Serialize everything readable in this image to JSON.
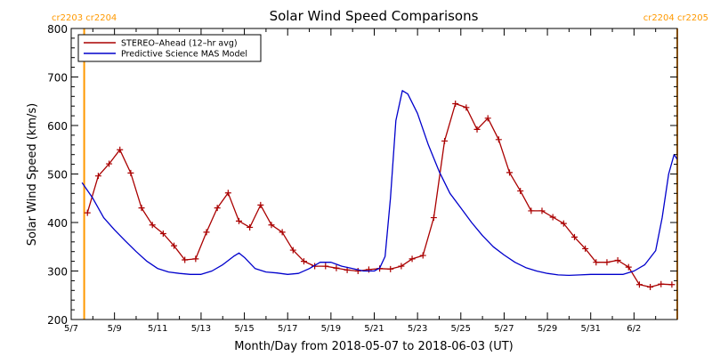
{
  "chart_data": {
    "type": "line",
    "title": "Solar Wind Speed Comparisons",
    "xlabel": "Month/Day from 2018-05-07 to 2018-06-03 (UT)",
    "ylabel": "Solar Wind Speed (km/s)",
    "xlim": [
      0,
      28
    ],
    "ylim": [
      200,
      800
    ],
    "x_ticks": [
      {
        "x": 0,
        "label": "5/7"
      },
      {
        "x": 2,
        "label": "5/9"
      },
      {
        "x": 4,
        "label": "5/11"
      },
      {
        "x": 6,
        "label": "5/13"
      },
      {
        "x": 8,
        "label": "5/15"
      },
      {
        "x": 10,
        "label": "5/17"
      },
      {
        "x": 12,
        "label": "5/19"
      },
      {
        "x": 14,
        "label": "5/21"
      },
      {
        "x": 16,
        "label": "5/23"
      },
      {
        "x": 18,
        "label": "5/25"
      },
      {
        "x": 20,
        "label": "5/27"
      },
      {
        "x": 22,
        "label": "5/29"
      },
      {
        "x": 24,
        "label": "5/31"
      },
      {
        "x": 26,
        "label": "6/2"
      }
    ],
    "y_ticks": [
      200,
      300,
      400,
      500,
      600,
      700,
      800
    ],
    "carrington": {
      "left_label": "cr2203 cr2204",
      "right_label": "cr2204 cr2205",
      "boundary_x": [
        0.6,
        28
      ],
      "color": "#ff9900"
    },
    "legend": {
      "position": "top-left"
    },
    "series": [
      {
        "name": "STEREO–Ahead (12–hr avg)",
        "color": "#aa0000",
        "marker": "plus",
        "points": [
          [
            0.75,
            420
          ],
          [
            1.25,
            496
          ],
          [
            1.75,
            521
          ],
          [
            2.25,
            550
          ],
          [
            2.75,
            502
          ],
          [
            3.25,
            430
          ],
          [
            3.75,
            395
          ],
          [
            4.25,
            377
          ],
          [
            4.75,
            352
          ],
          [
            5.25,
            323
          ],
          [
            5.75,
            325
          ],
          [
            6.25,
            380
          ],
          [
            6.75,
            430
          ],
          [
            7.25,
            461
          ],
          [
            7.75,
            403
          ],
          [
            8.25,
            390
          ],
          [
            8.75,
            436
          ],
          [
            9.25,
            395
          ],
          [
            9.75,
            380
          ],
          [
            10.25,
            343
          ],
          [
            10.75,
            320
          ],
          [
            11.25,
            310
          ],
          [
            11.75,
            310
          ],
          [
            12.25,
            306
          ],
          [
            12.75,
            302
          ],
          [
            13.25,
            300
          ],
          [
            13.75,
            303
          ],
          [
            14.25,
            305
          ],
          [
            14.75,
            304
          ],
          [
            15.25,
            310
          ],
          [
            15.75,
            325
          ],
          [
            16.25,
            332
          ],
          [
            16.75,
            410
          ],
          [
            17.25,
            568
          ],
          [
            17.75,
            645
          ],
          [
            18.25,
            637
          ],
          [
            18.75,
            592
          ],
          [
            19.25,
            615
          ],
          [
            19.75,
            571
          ],
          [
            20.25,
            503
          ],
          [
            20.75,
            465
          ],
          [
            21.25,
            424
          ],
          [
            21.75,
            424
          ],
          [
            22.25,
            411
          ],
          [
            22.75,
            398
          ],
          [
            23.25,
            370
          ],
          [
            23.75,
            346
          ],
          [
            24.25,
            318
          ],
          [
            24.75,
            318
          ],
          [
            25.25,
            322
          ],
          [
            25.75,
            308
          ],
          [
            26.25,
            272
          ],
          [
            26.75,
            267
          ],
          [
            27.25,
            273
          ],
          [
            27.75,
            272
          ]
        ]
      },
      {
        "name": "Predictive Science MAS Model",
        "color": "#0000cc",
        "marker": "none",
        "points": [
          [
            0.5,
            482
          ],
          [
            1,
            450
          ],
          [
            1.5,
            410
          ],
          [
            2,
            385
          ],
          [
            2.5,
            362
          ],
          [
            3,
            340
          ],
          [
            3.5,
            320
          ],
          [
            4,
            305
          ],
          [
            4.5,
            298
          ],
          [
            5,
            295
          ],
          [
            5.5,
            293
          ],
          [
            6,
            293
          ],
          [
            6.5,
            300
          ],
          [
            7,
            313
          ],
          [
            7.5,
            330
          ],
          [
            7.75,
            337
          ],
          [
            8,
            328
          ],
          [
            8.5,
            305
          ],
          [
            9,
            298
          ],
          [
            9.5,
            296
          ],
          [
            10,
            293
          ],
          [
            10.5,
            295
          ],
          [
            11,
            305
          ],
          [
            11.5,
            318
          ],
          [
            12,
            318
          ],
          [
            12.5,
            310
          ],
          [
            13,
            305
          ],
          [
            13.5,
            300
          ],
          [
            14,
            300
          ],
          [
            14.25,
            306
          ],
          [
            14.5,
            330
          ],
          [
            14.75,
            450
          ],
          [
            15,
            610
          ],
          [
            15.3,
            672
          ],
          [
            15.55,
            665
          ],
          [
            16,
            625
          ],
          [
            16.5,
            560
          ],
          [
            17,
            505
          ],
          [
            17.5,
            460
          ],
          [
            18,
            430
          ],
          [
            18.5,
            400
          ],
          [
            19,
            373
          ],
          [
            19.5,
            350
          ],
          [
            20,
            333
          ],
          [
            20.5,
            318
          ],
          [
            21,
            307
          ],
          [
            21.5,
            300
          ],
          [
            22,
            295
          ],
          [
            22.5,
            292
          ],
          [
            23,
            291
          ],
          [
            23.5,
            292
          ],
          [
            24,
            293
          ],
          [
            24.5,
            293
          ],
          [
            25,
            293
          ],
          [
            25.5,
            293
          ],
          [
            26,
            300
          ],
          [
            26.5,
            313
          ],
          [
            27,
            342
          ],
          [
            27.3,
            410
          ],
          [
            27.6,
            500
          ],
          [
            27.85,
            540
          ],
          [
            28,
            530
          ]
        ]
      }
    ]
  }
}
